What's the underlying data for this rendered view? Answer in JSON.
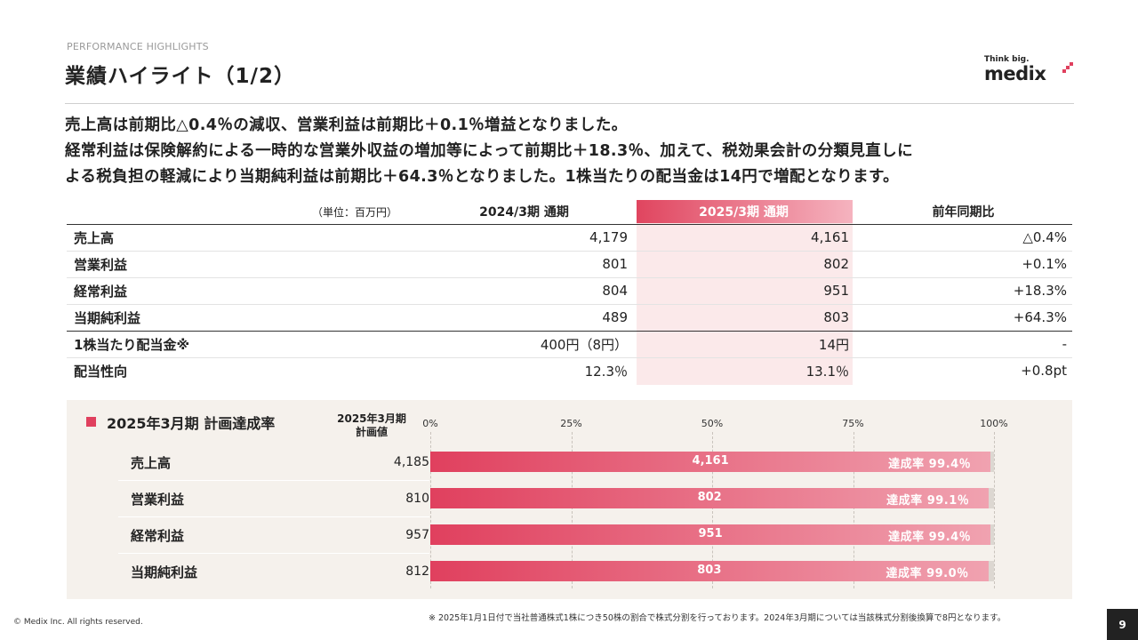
{
  "header": {
    "eyebrow": "PERFORMANCE HIGHLIGHTS",
    "title": "業績ハイライト（1/2）",
    "brand_tagline": "Think big.",
    "brand_name": "medix",
    "brand_color": "#e0405e"
  },
  "lead": [
    "売上高は前期比△0.4％の減収、営業利益は前期比＋0.1％増益となりました。",
    "経常利益は保険解約による一時的な営業外収益の増加等によって前期比＋18.3％、加えて、税効果会計の分類見直しに",
    "よる税負担の軽減により当期純利益は前期比＋64.3％となりました。1株当たりの配当金は14円で増配となります。"
  ],
  "results_table": {
    "unit": "（単位：百万円）",
    "columns": [
      "2024/3期 通期",
      "2025/3期 通期",
      "前年同期比"
    ],
    "rows": [
      {
        "label": "売上高",
        "prev": "4,179",
        "curr": "4,161",
        "yoy": "△0.4%"
      },
      {
        "label": "営業利益",
        "prev": "801",
        "curr": "802",
        "yoy": "+0.1%"
      },
      {
        "label": "経常利益",
        "prev": "804",
        "curr": "951",
        "yoy": "+18.3%"
      },
      {
        "label": "当期純利益",
        "prev": "489",
        "curr": "803",
        "yoy": "+64.3%"
      },
      {
        "label": "1株当たり配当金※",
        "prev": "400円（8円）",
        "curr": "14円",
        "yoy": "-"
      },
      {
        "label": "配当性向",
        "prev": "12.3％",
        "curr": "13.1％",
        "yoy": "+0.8pt"
      }
    ]
  },
  "achievement": {
    "title": "2025年3月期 計画達成率",
    "plan_header_line1": "2025年3月期",
    "plan_header_line2": "計画値",
    "axis_ticks": [
      "0%",
      "25%",
      "50%",
      "75%",
      "100%"
    ],
    "rate_label": "達成率",
    "items": [
      {
        "name": "売上高",
        "plan": "4,185",
        "actual": "4,161",
        "rate": 99.4,
        "rate_text": "99.4％"
      },
      {
        "name": "営業利益",
        "plan": "810",
        "actual": "802",
        "rate": 99.1,
        "rate_text": "99.1％"
      },
      {
        "name": "経常利益",
        "plan": "957",
        "actual": "951",
        "rate": 99.4,
        "rate_text": "99.4％"
      },
      {
        "name": "当期純利益",
        "plan": "812",
        "actual": "803",
        "rate": 99.0,
        "rate_text": "99.0％"
      }
    ]
  },
  "footnote": "※ 2025年1月1日付で当社普通株式1株につき50株の割合で株式分割を行っております。2024年3月期については当該株式分割後換算で8円となります。",
  "copyright": "© Medix Inc. All rights reserved.",
  "page_number": "9"
}
